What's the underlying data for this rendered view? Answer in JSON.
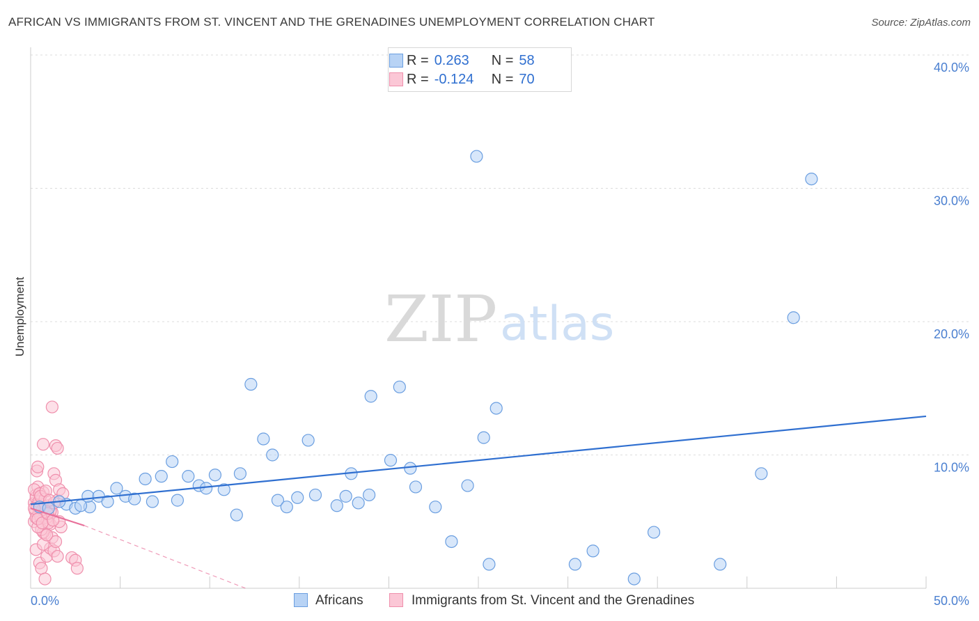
{
  "title": "AFRICAN VS IMMIGRANTS FROM ST. VINCENT AND THE GRENADINES UNEMPLOYMENT CORRELATION CHART",
  "source": "Source: ZipAtlas.com",
  "watermark": {
    "zip": "ZIP",
    "atlas": "atlas"
  },
  "legend": {
    "series1": {
      "r_label": "R =",
      "r_value": "0.263",
      "n_label": "N =",
      "n_value": "58",
      "color": "#b8d3f5",
      "stroke": "#6a9ee0"
    },
    "series2": {
      "r_label": "R =",
      "r_value": "-0.124",
      "n_label": "N =",
      "n_value": "70",
      "color": "#fbc7d6",
      "stroke": "#ef8fac"
    }
  },
  "bottom_legend": {
    "series1_label": "Africans",
    "series2_label": "Immigrants from St. Vincent and the Grenadines"
  },
  "chart_data": {
    "type": "scatter",
    "xlabel": "",
    "ylabel": "Unemployment",
    "xlim": [
      0,
      50
    ],
    "ylim": [
      0,
      40
    ],
    "x_tick_labels": {
      "min": "0.0%",
      "max": "50.0%"
    },
    "y_ticks": [
      {
        "value": 10,
        "label": "10.0%"
      },
      {
        "value": 20,
        "label": "20.0%"
      },
      {
        "value": 30,
        "label": "30.0%"
      },
      {
        "value": 40,
        "label": "40.0%"
      }
    ],
    "series": [
      {
        "name": "Africans",
        "color": "#b8d3f5",
        "stroke": "#6a9ee0",
        "trend": {
          "x": [
            0,
            50
          ],
          "y": [
            6.3,
            12.9
          ],
          "color": "#2f6fd0"
        },
        "points": [
          [
            0.5,
            6.1
          ],
          [
            2.0,
            6.3
          ],
          [
            2.5,
            6.0
          ],
          [
            3.3,
            6.1
          ],
          [
            3.2,
            6.9
          ],
          [
            3.8,
            6.9
          ],
          [
            4.3,
            6.5
          ],
          [
            4.8,
            7.5
          ],
          [
            5.3,
            6.9
          ],
          [
            5.8,
            6.7
          ],
          [
            6.4,
            8.2
          ],
          [
            6.8,
            6.5
          ],
          [
            7.3,
            8.4
          ],
          [
            7.9,
            9.5
          ],
          [
            8.2,
            6.6
          ],
          [
            8.8,
            8.4
          ],
          [
            9.4,
            7.7
          ],
          [
            9.8,
            7.5
          ],
          [
            10.3,
            8.5
          ],
          [
            10.8,
            7.4
          ],
          [
            11.5,
            5.5
          ],
          [
            11.7,
            8.6
          ],
          [
            12.3,
            15.3
          ],
          [
            13.0,
            11.2
          ],
          [
            13.5,
            10.0
          ],
          [
            13.8,
            6.6
          ],
          [
            14.3,
            6.1
          ],
          [
            14.9,
            6.8
          ],
          [
            15.5,
            11.1
          ],
          [
            15.9,
            7.0
          ],
          [
            17.1,
            6.2
          ],
          [
            17.6,
            6.9
          ],
          [
            17.9,
            8.6
          ],
          [
            18.3,
            6.4
          ],
          [
            18.9,
            7.0
          ],
          [
            19.0,
            14.4
          ],
          [
            20.1,
            9.6
          ],
          [
            20.6,
            15.1
          ],
          [
            21.2,
            9.0
          ],
          [
            21.5,
            7.6
          ],
          [
            22.6,
            6.1
          ],
          [
            23.5,
            3.5
          ],
          [
            24.4,
            7.7
          ],
          [
            24.9,
            32.4
          ],
          [
            25.3,
            11.3
          ],
          [
            26.0,
            13.5
          ],
          [
            25.6,
            1.8
          ],
          [
            30.4,
            1.8
          ],
          [
            31.4,
            2.8
          ],
          [
            33.7,
            0.7
          ],
          [
            34.8,
            4.2
          ],
          [
            38.5,
            1.8
          ],
          [
            40.8,
            8.6
          ],
          [
            42.6,
            20.3
          ],
          [
            43.6,
            30.7
          ],
          [
            1.0,
            6.0
          ],
          [
            1.6,
            6.5
          ],
          [
            2.8,
            6.2
          ]
        ]
      },
      {
        "name": "Immigrants from St. Vincent and the Grenadines",
        "color": "#fbc7d6",
        "stroke": "#ef8fac",
        "trend": {
          "x": [
            0,
            3.0
          ],
          "y": [
            6.0,
            4.7
          ],
          "color": "#e8709a",
          "dashed_extension": {
            "x": [
              3.0,
              12.0
            ],
            "y": [
              4.7,
              0.0
            ]
          }
        },
        "points": [
          [
            0.2,
            6.4
          ],
          [
            0.3,
            7.0
          ],
          [
            0.4,
            5.5
          ],
          [
            0.35,
            8.8
          ],
          [
            0.4,
            9.1
          ],
          [
            0.5,
            6.0
          ],
          [
            0.6,
            5.2
          ],
          [
            0.7,
            7.2
          ],
          [
            0.8,
            4.1
          ],
          [
            0.9,
            5.0
          ],
          [
            1.0,
            6.2
          ],
          [
            1.1,
            4.8
          ],
          [
            1.2,
            5.7
          ],
          [
            1.3,
            8.6
          ],
          [
            1.4,
            8.1
          ],
          [
            1.5,
            6.6
          ],
          [
            1.6,
            7.4
          ],
          [
            1.7,
            4.6
          ],
          [
            1.2,
            13.6
          ],
          [
            0.7,
            10.8
          ],
          [
            1.4,
            10.7
          ],
          [
            1.5,
            10.5
          ],
          [
            1.8,
            7.1
          ],
          [
            0.3,
            2.9
          ],
          [
            0.5,
            1.9
          ],
          [
            0.6,
            1.5
          ],
          [
            0.8,
            0.7
          ],
          [
            0.9,
            2.4
          ],
          [
            1.1,
            3.0
          ],
          [
            1.2,
            3.8
          ],
          [
            1.3,
            2.8
          ],
          [
            1.4,
            3.5
          ],
          [
            1.5,
            2.4
          ],
          [
            2.3,
            2.3
          ],
          [
            2.5,
            2.1
          ],
          [
            2.6,
            1.5
          ],
          [
            0.2,
            5.0
          ],
          [
            0.3,
            6.8
          ],
          [
            0.4,
            7.6
          ],
          [
            0.6,
            6.3
          ],
          [
            0.7,
            4.2
          ],
          [
            0.8,
            5.6
          ],
          [
            0.9,
            5.3
          ],
          [
            1.0,
            6.0
          ],
          [
            0.25,
            5.8
          ],
          [
            0.35,
            6.2
          ],
          [
            0.45,
            6.5
          ],
          [
            0.55,
            5.4
          ],
          [
            0.65,
            5.9
          ],
          [
            0.75,
            6.1
          ],
          [
            0.2,
            7.4
          ],
          [
            0.3,
            5.3
          ],
          [
            0.5,
            7.1
          ],
          [
            0.6,
            4.4
          ],
          [
            0.8,
            6.7
          ],
          [
            1.0,
            4.9
          ],
          [
            1.1,
            5.8
          ],
          [
            0.4,
            4.6
          ],
          [
            0.7,
            3.3
          ],
          [
            0.9,
            4.0
          ],
          [
            1.3,
            6.4
          ],
          [
            1.6,
            5.0
          ],
          [
            0.2,
            6.0
          ],
          [
            0.4,
            5.2
          ],
          [
            0.55,
            6.9
          ],
          [
            0.65,
            4.9
          ],
          [
            0.85,
            7.3
          ],
          [
            0.95,
            5.6
          ],
          [
            1.05,
            6.6
          ],
          [
            1.25,
            5.1
          ]
        ]
      }
    ]
  }
}
